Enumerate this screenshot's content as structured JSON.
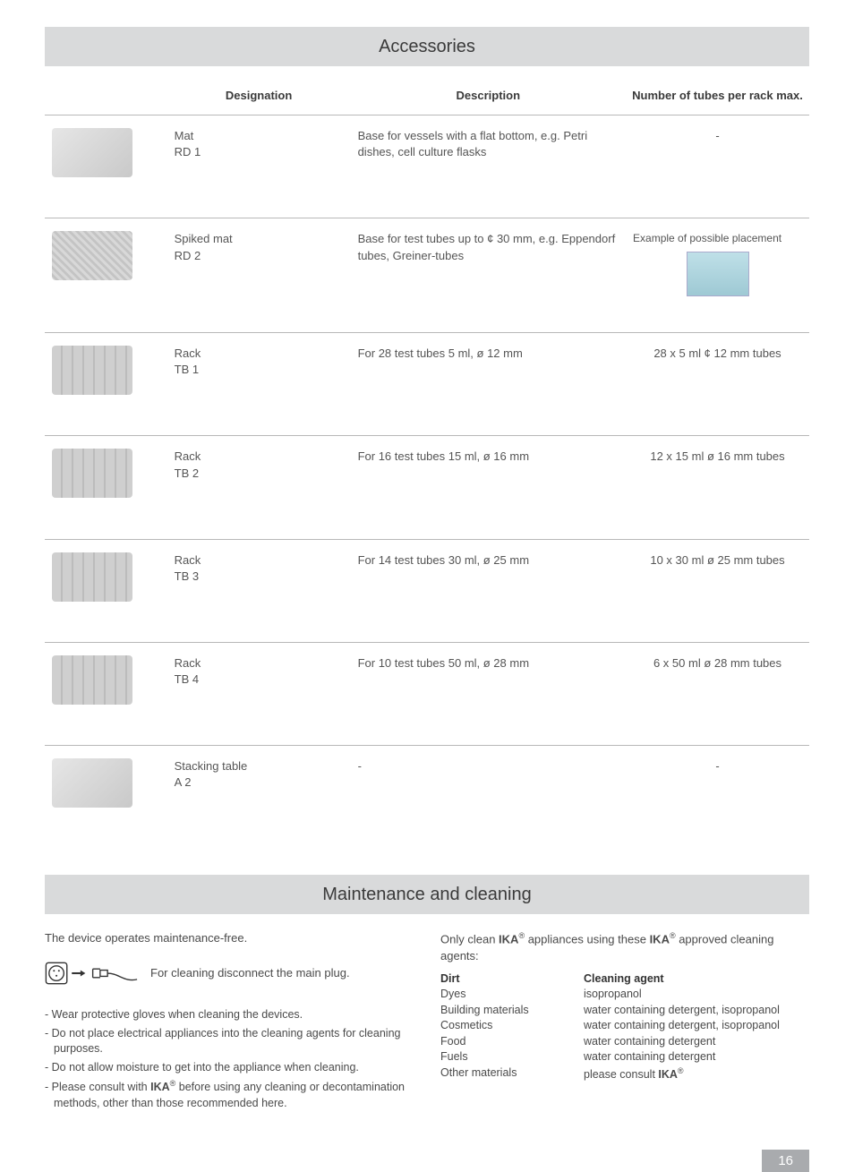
{
  "accessories": {
    "title": "Accessories",
    "headers": {
      "designation": "Designation",
      "description": "Description",
      "number": "Number of tubes per rack max."
    },
    "rows": [
      {
        "desig_line1": "Mat",
        "desig_line2": "RD 1",
        "description": "Base for vessels with a flat bottom, e.g. Petri dishes, cell culture flasks",
        "number": "-",
        "img_variant": "flat",
        "example": false
      },
      {
        "desig_line1": "Spiked mat",
        "desig_line2": "RD 2",
        "description": "Base for test tubes up to ¢ 30 mm, e.g. Eppendorf tubes, Greiner-tubes",
        "number_label": "Example of possible placement",
        "img_variant": "spiked",
        "example": true
      },
      {
        "desig_line1": "Rack",
        "desig_line2": "TB 1",
        "description": "For 28 test tubes 5 ml, ø 12 mm",
        "number": "28 x 5 ml ¢ 12 mm tubes",
        "img_variant": "rack",
        "example": false
      },
      {
        "desig_line1": "Rack",
        "desig_line2": "TB 2",
        "description": "For 16 test tubes 15 ml, ø 16 mm",
        "number": "12 x 15 ml ø 16 mm tubes",
        "img_variant": "rack",
        "example": false
      },
      {
        "desig_line1": "Rack",
        "desig_line2": "TB 3",
        "description": "For 14 test tubes 30 ml, ø 25 mm",
        "number": "10 x 30 ml ø 25 mm tubes",
        "img_variant": "rack",
        "example": false
      },
      {
        "desig_line1": "Rack",
        "desig_line2": "TB 4",
        "description": "For 10 test tubes 50 ml, ø 28 mm",
        "number": "6 x 50 ml ø 28 mm tubes",
        "img_variant": "rack",
        "example": false
      },
      {
        "desig_line1": "Stacking table",
        "desig_line2": "A 2",
        "description": "-",
        "number": "-",
        "img_variant": "flat",
        "example": false
      }
    ]
  },
  "maintenance": {
    "title": "Maintenance and cleaning",
    "intro": "The device operates maintenance-free.",
    "plug_note": "For cleaning disconnect the main plug.",
    "bullets": [
      "- Wear protective gloves when cleaning the devices.",
      "- Do not place electrical appliances into the cleaning agents for cleaning purposes.",
      "- Do not allow moisture to get into the appliance when cleaning.",
      "- Please consult with IKA® before using any cleaning or decontamination methods, other than those recommended here."
    ],
    "right_intro_pre": "Only clean ",
    "right_intro_brand1": "IKA",
    "right_intro_mid": " appliances using these ",
    "right_intro_brand2": "IKA",
    "right_intro_post": " approved cleaning agents:",
    "agents": {
      "header_dirt": "Dirt",
      "header_agent": "Cleaning agent",
      "rows": [
        {
          "dirt": "Dyes",
          "agent": "isopropanol"
        },
        {
          "dirt": "Building materials",
          "agent": "water containing detergent, isopropanol"
        },
        {
          "dirt": "Cosmetics",
          "agent": "water containing detergent, isopropanol"
        },
        {
          "dirt": "Food",
          "agent": "water containing detergent"
        },
        {
          "dirt": "Fuels",
          "agent": "water containing detergent"
        },
        {
          "dirt": "Other materials",
          "agent_pre": "please consult ",
          "agent_brand": "IKA"
        }
      ]
    }
  },
  "page_number": "16",
  "colors": {
    "section_bg": "#d9dadb",
    "border": "#b8b8b8",
    "pagenum_bg": "#a9abae"
  }
}
